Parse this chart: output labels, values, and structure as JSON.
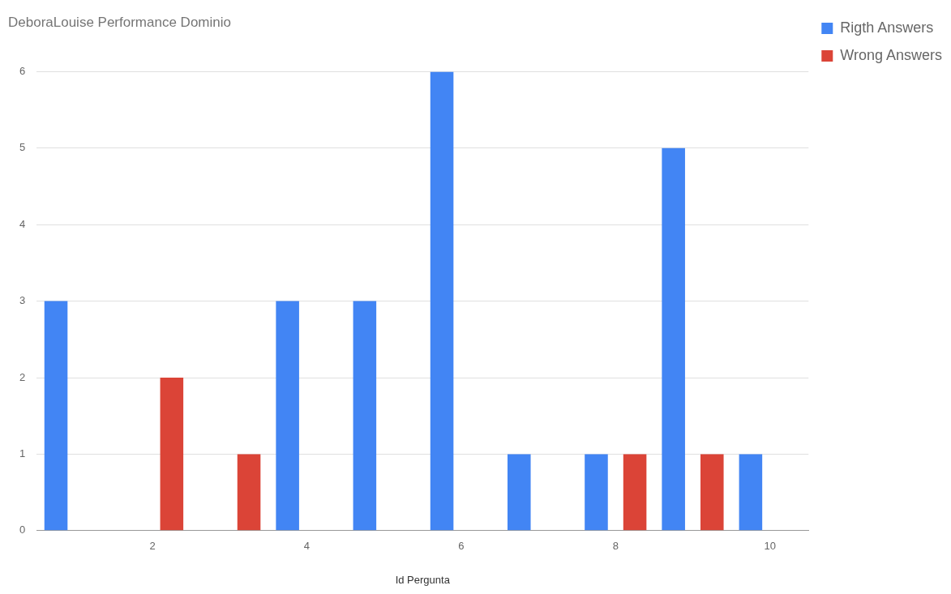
{
  "chart_data": {
    "type": "bar",
    "title": "DeboraLouise Performance Dominio",
    "xlabel": "Id Pergunta",
    "x": [
      1,
      2,
      3,
      4,
      5,
      6,
      7,
      8,
      9,
      10
    ],
    "xlim": [
      0.5,
      10.5
    ],
    "xticks": [
      2,
      4,
      6,
      8,
      10
    ],
    "ylim": [
      0,
      6
    ],
    "yticks": [
      0,
      1,
      2,
      3,
      4,
      5,
      6
    ],
    "grid": "y",
    "legend": "right",
    "series": [
      {
        "name": "Rigth Answers",
        "color": "#4285f4",
        "values": [
          3,
          0,
          0,
          3,
          3,
          6,
          1,
          1,
          5,
          1
        ]
      },
      {
        "name": "Wrong Answers",
        "color": "#db4437",
        "values": [
          0,
          2,
          1,
          0,
          0,
          0,
          0,
          1,
          1,
          0
        ]
      }
    ]
  }
}
